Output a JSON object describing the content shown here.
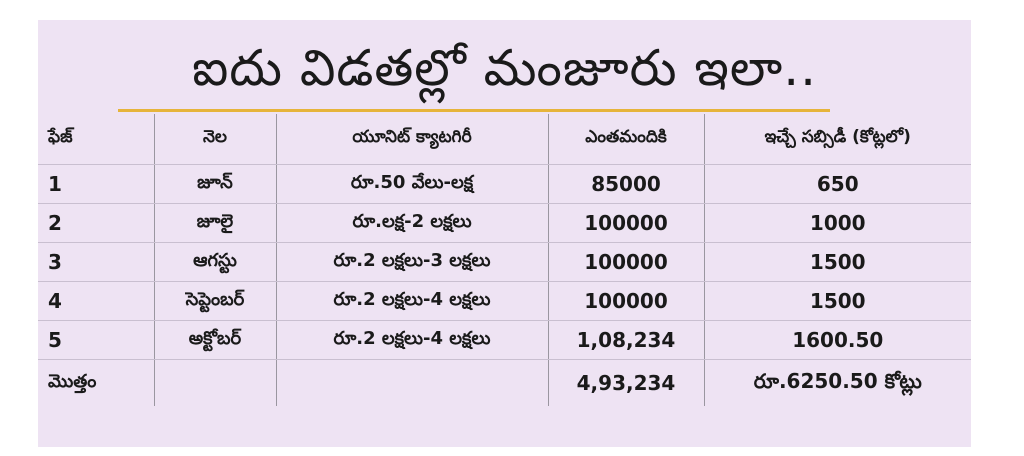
{
  "title": "ఐదు విడతల్లో మంజూరు ఇలా..",
  "table": {
    "headers": [
      "ఫేజ్",
      "నెల",
      "యూనిట్ క్యాటగిరీ",
      "ఎంతమందికి",
      "ఇచ్చే సబ్సిడీ (కోట్లలో)"
    ],
    "rows": [
      [
        "1",
        "జూన్",
        "రూ.50 వేలు-లక్ష",
        "85000",
        "650"
      ],
      [
        "2",
        "జూలై",
        "రూ.లక్ష-2 లక్షలు",
        "100000",
        "1000"
      ],
      [
        "3",
        "ఆగస్టు",
        "రూ.2 లక్షలు-3 లక్షలు",
        "100000",
        "1500"
      ],
      [
        "4",
        "సెప్టెంబర్",
        "రూ.2 లక్షలు-4 లక్షలు",
        "100000",
        "1500"
      ],
      [
        "5",
        "అక్టోబర్",
        "రూ.2 లక్షలు-4 లక్షలు",
        "1,08,234",
        "1600.50"
      ]
    ],
    "total": [
      "మొత్తం",
      "",
      "",
      "4,93,234",
      "రూ.6250.50 కోట్లు"
    ]
  }
}
